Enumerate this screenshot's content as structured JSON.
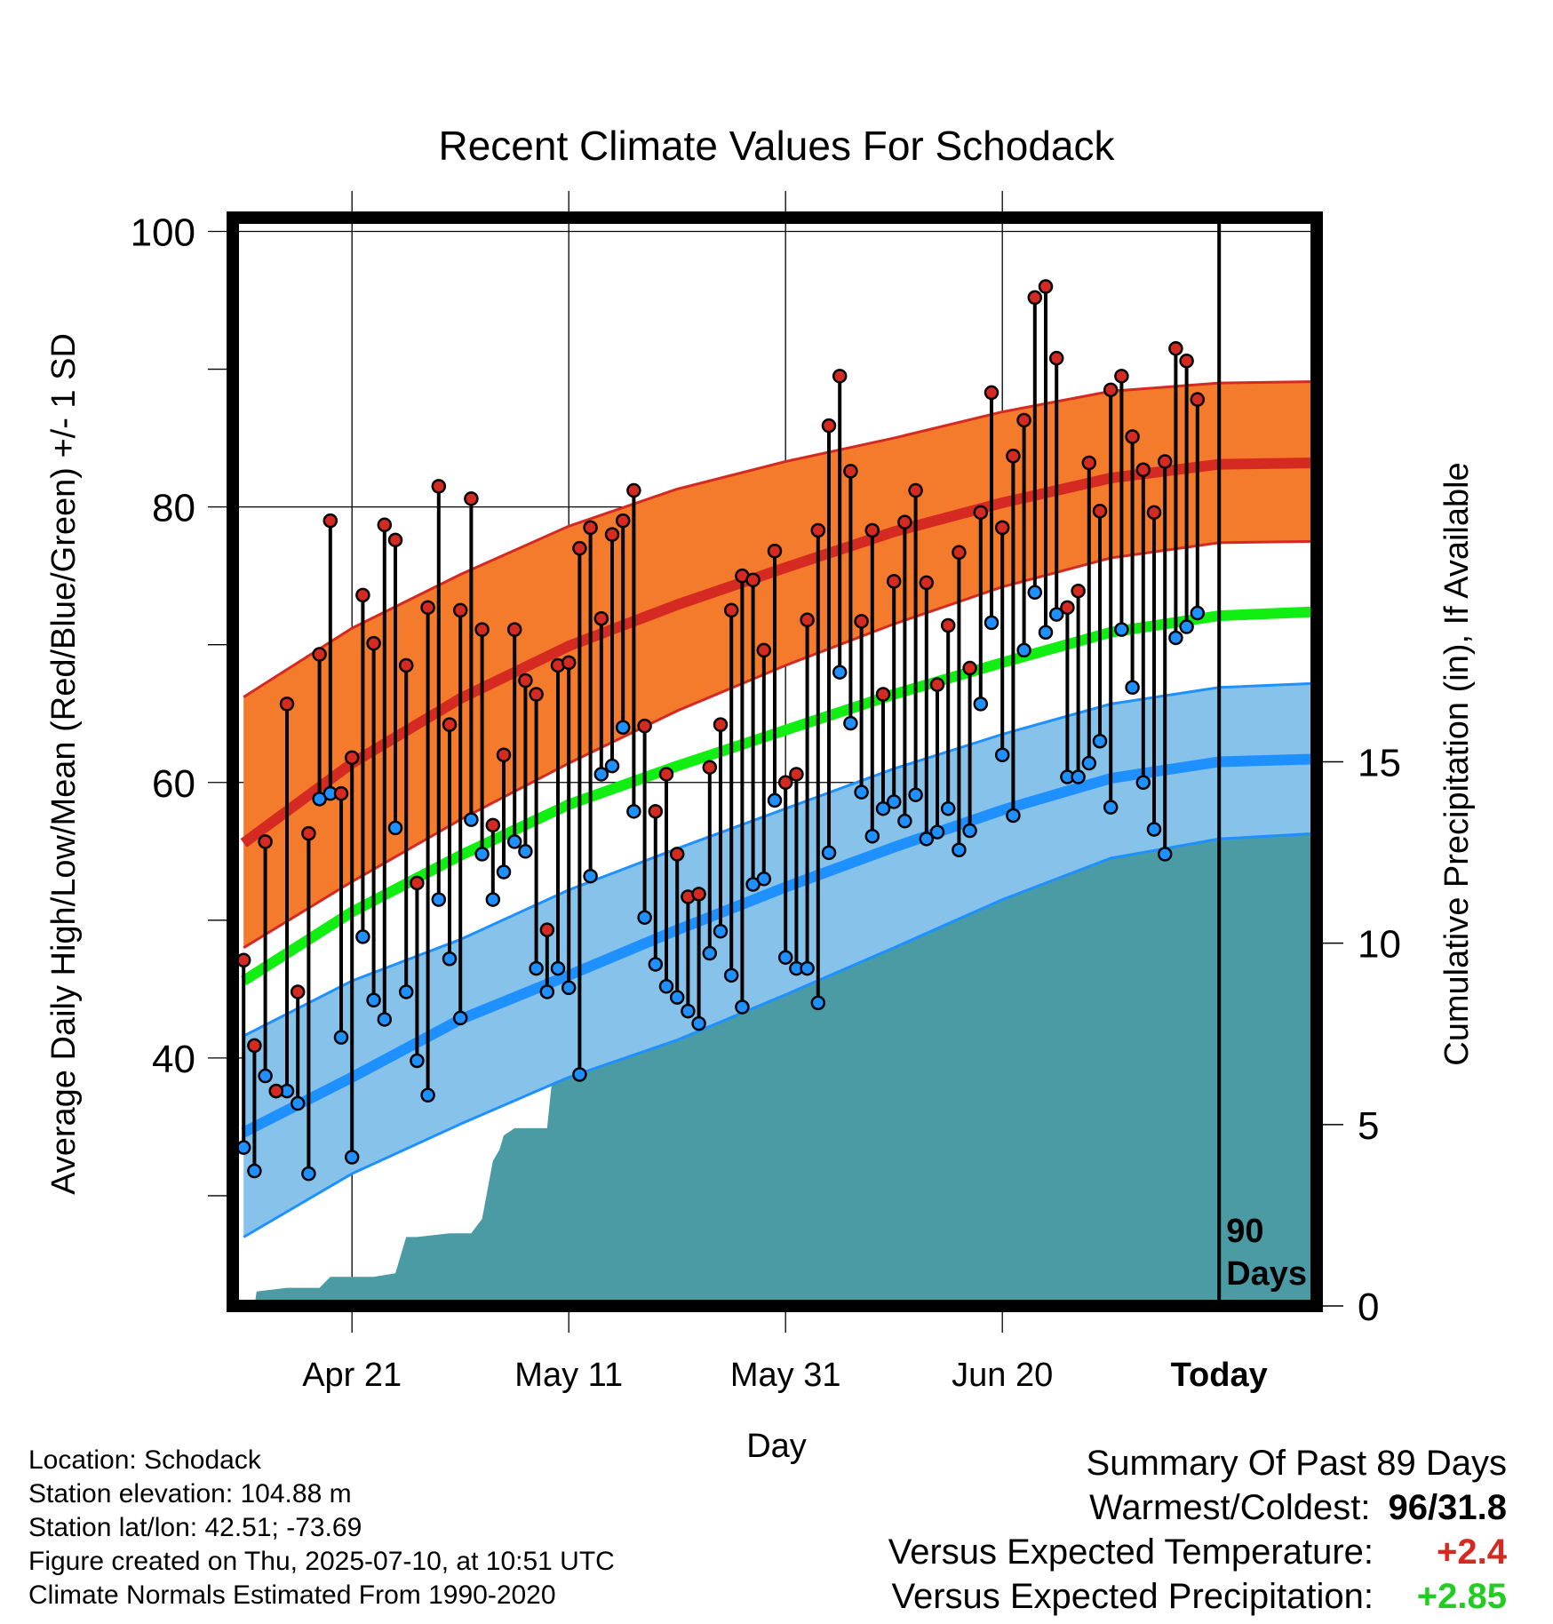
{
  "chart_data": {
    "type": "line",
    "title": "Recent Climate Values For Schodack",
    "xlabel": "Day",
    "ylabel": "Average Daily High/Low/Mean (Red/Blue/Green) +/- 1 SD",
    "y2label": "Cumulative Precipitation (in), If Available",
    "ylim": [
      22,
      101
    ],
    "y_ticks": [
      40,
      60,
      80,
      100
    ],
    "y2lim": [
      0,
      30
    ],
    "y2_ticks": [
      0,
      5,
      10,
      15
    ],
    "x_ticks": [
      "Apr 21",
      "May 11",
      "May 31",
      "Jun 20",
      "Today"
    ],
    "x_tick_days": [
      10,
      30,
      50,
      70,
      90
    ],
    "xlim": [
      -1,
      99
    ],
    "today_marker": {
      "day": 90,
      "label_line1": "90",
      "label_line2": "Days"
    },
    "grid": true,
    "colors": {
      "high_band": "#f47a2c",
      "high_line": "#d42a22",
      "mean_line": "#11ee11",
      "low_band": "#86c2e9",
      "low_line": "#1e90ff",
      "precip": "#4a9ba4",
      "high_dot": "#d42a22",
      "low_dot": "#1e90ff"
    },
    "normals": {
      "days": [
        0,
        10,
        20,
        30,
        40,
        50,
        60,
        70,
        80,
        90,
        99
      ],
      "high_mean": [
        55.6,
        61.4,
        66.1,
        69.9,
        72.9,
        75.6,
        78.2,
        80.3,
        82.1,
        83.1,
        83.2
      ],
      "high_upper": [
        66.2,
        71.2,
        75.1,
        78.6,
        81.3,
        83.3,
        85.0,
        86.9,
        88.4,
        89.0,
        89.1
      ],
      "high_lower": [
        48.0,
        52.8,
        57.3,
        61.4,
        65.2,
        68.5,
        71.5,
        74.2,
        76.3,
        77.4,
        77.5
      ],
      "mean": [
        45.6,
        50.6,
        54.7,
        58.4,
        61.2,
        63.8,
        66.4,
        68.7,
        70.9,
        72.1,
        72.4
      ],
      "low_mean": [
        34.6,
        38.6,
        42.8,
        46.0,
        49.3,
        52.4,
        55.3,
        58.0,
        60.3,
        61.5,
        61.7
      ],
      "low_upper": [
        41.6,
        45.6,
        48.6,
        52.2,
        55.2,
        58.1,
        61.0,
        63.5,
        65.7,
        66.9,
        67.2
      ],
      "low_lower": [
        27.0,
        31.6,
        35.2,
        38.6,
        41.3,
        44.6,
        48.0,
        51.5,
        54.5,
        55.9,
        56.3
      ]
    },
    "series": [
      {
        "name": "High",
        "x": [
          0,
          1,
          2,
          3,
          4,
          5,
          6,
          7,
          8,
          9,
          10,
          11,
          12,
          13,
          14,
          15,
          16,
          17,
          18,
          19,
          20,
          21,
          22,
          23,
          24,
          25,
          26,
          27,
          28,
          29,
          30,
          31,
          32,
          33,
          34,
          35,
          36,
          37,
          38,
          39,
          40,
          41,
          42,
          43,
          44,
          45,
          46,
          47,
          48,
          49,
          50,
          51,
          52,
          53,
          54,
          55,
          56,
          57,
          58,
          59,
          60,
          61,
          62,
          63,
          64,
          65,
          66,
          67,
          68,
          69,
          70,
          71,
          72,
          73,
          74,
          75,
          76,
          77,
          78,
          79,
          80,
          81,
          82,
          83,
          84,
          85,
          86,
          87,
          88
        ],
        "values": [
          47.1,
          40.9,
          55.7,
          37.6,
          65.7,
          44.8,
          56.3,
          69.3,
          79.0,
          59.2,
          61.8,
          73.6,
          70.1,
          78.7,
          77.6,
          68.5,
          52.7,
          72.7,
          81.5,
          64.2,
          72.5,
          80.6,
          71.1,
          56.9,
          62.0,
          71.1,
          67.4,
          66.4,
          49.3,
          68.5,
          68.7,
          77.0,
          78.5,
          71.9,
          78.0,
          79.0,
          81.2,
          64.1,
          57.9,
          60.6,
          54.8,
          51.7,
          51.9,
          61.1,
          64.2,
          72.5,
          75.0,
          74.7,
          69.6,
          76.8,
          60.0,
          60.6,
          71.8,
          78.3,
          85.9,
          89.5,
          82.6,
          71.7,
          78.3,
          66.4,
          74.6,
          78.9,
          81.2,
          74.5,
          67.1,
          71.4,
          76.7,
          68.3,
          79.6,
          88.3,
          78.5,
          83.7,
          86.3,
          95.2,
          96.0,
          90.8,
          72.7,
          73.9,
          83.2,
          79.7,
          88.5,
          89.5,
          85.1,
          82.7,
          79.6,
          83.3,
          91.5,
          90.6,
          87.8
        ]
      },
      {
        "name": "Low",
        "x": [
          0,
          1,
          2,
          3,
          4,
          5,
          6,
          7,
          8,
          9,
          10,
          11,
          12,
          13,
          14,
          15,
          16,
          17,
          18,
          19,
          20,
          21,
          22,
          23,
          24,
          25,
          26,
          27,
          28,
          29,
          30,
          31,
          32,
          33,
          34,
          35,
          36,
          37,
          38,
          39,
          40,
          41,
          42,
          43,
          44,
          45,
          46,
          47,
          48,
          49,
          50,
          51,
          52,
          53,
          54,
          55,
          56,
          57,
          58,
          59,
          60,
          61,
          62,
          63,
          64,
          65,
          66,
          67,
          68,
          69,
          70,
          71,
          72,
          73,
          74,
          75,
          76,
          77,
          78,
          79,
          80,
          81,
          82,
          83,
          84,
          85,
          86,
          87,
          88
        ],
        "values": [
          33.5,
          31.8,
          38.7,
          37.6,
          37.6,
          36.7,
          31.6,
          58.8,
          59.2,
          41.5,
          32.8,
          48.8,
          44.2,
          42.8,
          56.7,
          44.8,
          39.8,
          37.3,
          51.5,
          47.2,
          42.9,
          57.3,
          54.8,
          51.5,
          53.5,
          55.7,
          55.0,
          46.5,
          44.8,
          46.5,
          45.1,
          38.8,
          53.2,
          60.6,
          61.2,
          64.0,
          57.9,
          50.2,
          46.8,
          45.2,
          44.4,
          43.4,
          42.5,
          47.6,
          49.2,
          46.0,
          43.7,
          52.6,
          53.0,
          58.7,
          47.3,
          46.5,
          46.5,
          44.0,
          54.9,
          68.0,
          64.3,
          59.3,
          56.1,
          58.1,
          58.6,
          57.2,
          59.1,
          55.9,
          56.4,
          58.1,
          55.1,
          56.5,
          65.7,
          71.6,
          62.0,
          57.6,
          69.6,
          73.8,
          70.9,
          72.2,
          60.4,
          60.4,
          61.4,
          63.0,
          58.2,
          71.1,
          66.9,
          60.0,
          56.6,
          54.8,
          70.5,
          71.3,
          72.3
        ]
      },
      {
        "name": "Cumulative Precipitation",
        "x": [
          0,
          1,
          1.2,
          4,
          7,
          8,
          12,
          14,
          15,
          16,
          19,
          21,
          22,
          23,
          23.6,
          24,
          25,
          26,
          28,
          29,
          29.3,
          30,
          33,
          35,
          37,
          38,
          40,
          41,
          42,
          45,
          48,
          49,
          49.7,
          51,
          53,
          55,
          57,
          58,
          59,
          61,
          62,
          64,
          66,
          68,
          70,
          74,
          80,
          83,
          88,
          90,
          99
        ],
        "values": [
          0,
          0,
          0.4,
          0.5,
          0.5,
          0.8,
          0.8,
          0.9,
          1.9,
          1.9,
          2.0,
          2.0,
          2.4,
          4.0,
          4.3,
          4.7,
          4.9,
          4.9,
          4.9,
          7.8,
          7.8,
          7.8,
          7.8,
          7.9,
          7.9,
          7.9,
          8.3,
          8.3,
          8.3,
          8.4,
          8.4,
          8.5,
          10.2,
          10.4,
          10.4,
          10.4,
          11.5,
          12.3,
          12.5,
          12.8,
          13.4,
          13.4,
          13.5,
          13.7,
          13.9,
          14.0,
          14.0,
          14.1,
          14.1,
          14.1,
          14.1
        ]
      }
    ]
  },
  "labels": {
    "y_ticks": [
      "40",
      "60",
      "80",
      "100"
    ],
    "y2_ticks": [
      "0",
      "5",
      "10",
      "15"
    ],
    "x_ticks": [
      "Apr 21",
      "May 11",
      "May 31",
      "Jun 20",
      "Today"
    ]
  },
  "info": {
    "location": "Location: Schodack",
    "elevation": "Station elevation: 104.88 m",
    "latlon": "Station lat/lon: 42.51; -73.69",
    "created": "Figure created on Thu, 2025-07-10, at 10:51 UTC",
    "normals": "Climate Normals Estimated From 1990-2020"
  },
  "summary": {
    "heading": "Summary Of Past 89 Days",
    "warmest_label": "Warmest/Coldest:",
    "warmest_value": "96/31.8",
    "temp_label": "Versus Expected Temperature:",
    "temp_value": "+2.4",
    "temp_color": "#d42a22",
    "precip_label": "Versus Expected Precipitation:",
    "precip_value": "+2.85",
    "precip_color": "#22cc22"
  }
}
